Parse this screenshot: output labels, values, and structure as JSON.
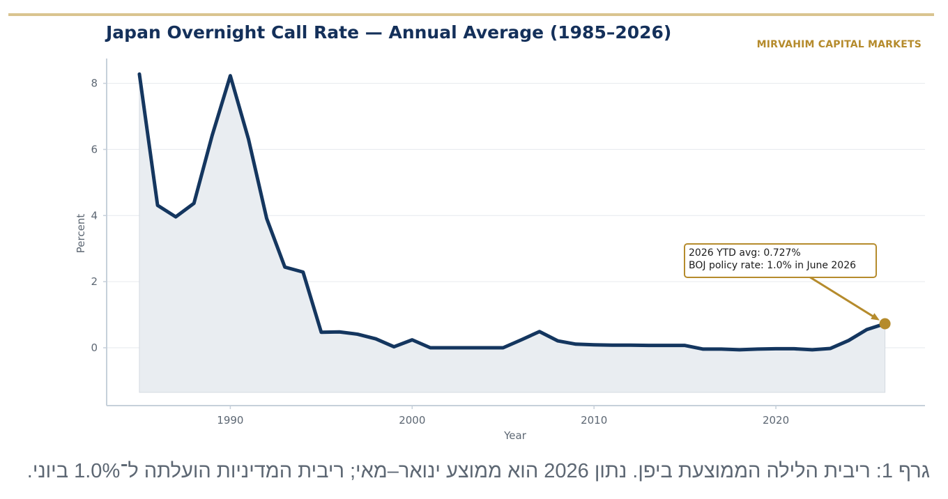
{
  "brand": "MIRVAHIM CAPITAL MARKETS",
  "caption": "גרף 1: ריבית הלילה הממוצעת ביפן. נתון 2026 הוא ממוצע ינואר–מאי; ריבית המדיניות הועלתה ל־1.0% ביוני.",
  "colors": {
    "line": "#14365f",
    "fill": "#e9edf1",
    "accent": "#b58b2c",
    "top_rule": "#d9c48f",
    "axis_text": "#5d6773",
    "grid": "#e6e9ed"
  },
  "chart_data": {
    "type": "area",
    "title": "Japan Overnight Call Rate — Annual Average (1985–2026)",
    "xlabel": "Year",
    "ylabel": "Percent",
    "xlim": [
      1983.2,
      2028.2
    ],
    "ylim": [
      -1.75,
      8.75
    ],
    "fill_baseline": -1.35,
    "x_ticks": [
      1990,
      2000,
      2010,
      2020
    ],
    "y_ticks": [
      0,
      2,
      4,
      6,
      8
    ],
    "grid": "horizontal",
    "x": [
      1985,
      1986,
      1987,
      1988,
      1989,
      1990,
      1991,
      1992,
      1993,
      1994,
      1995,
      1996,
      1997,
      1998,
      1999,
      2000,
      2001,
      2002,
      2003,
      2004,
      2005,
      2006,
      2007,
      2008,
      2009,
      2010,
      2011,
      2012,
      2013,
      2014,
      2015,
      2016,
      2017,
      2018,
      2019,
      2020,
      2021,
      2022,
      2023,
      2024,
      2025,
      2026
    ],
    "values": [
      8.28,
      4.31,
      3.96,
      4.37,
      6.42,
      8.23,
      6.31,
      3.91,
      2.44,
      2.29,
      0.47,
      0.48,
      0.41,
      0.27,
      0.03,
      0.24,
      0.0,
      0.0,
      0.0,
      0.0,
      0.0,
      0.24,
      0.49,
      0.21,
      0.11,
      0.09,
      0.08,
      0.08,
      0.07,
      0.07,
      0.07,
      -0.04,
      -0.04,
      -0.06,
      -0.04,
      -0.03,
      -0.03,
      -0.06,
      -0.02,
      0.22,
      0.55,
      0.727
    ],
    "highlight_point": {
      "x": 2026,
      "y": 0.727
    },
    "annotation": {
      "line1": "2026 YTD avg: 0.727%",
      "line2": "BOJ policy rate: 1.0% in June 2026"
    }
  }
}
